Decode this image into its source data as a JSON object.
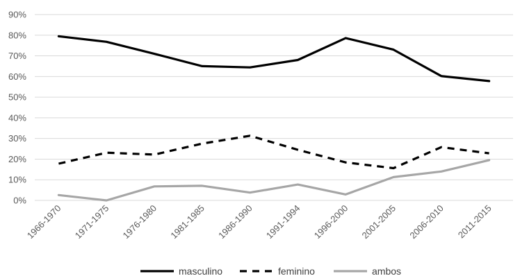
{
  "chart_data": {
    "type": "line",
    "title": "",
    "xlabel": "",
    "ylabel": "",
    "categories": [
      "1966-1970",
      "1971-1975",
      "1976-1980",
      "1981-1985",
      "1986-1990",
      "1991-1994",
      "1996-2000",
      "2001-2005",
      "2006-2010",
      "2011-2015"
    ],
    "ylim": [
      0,
      90
    ],
    "yticks": [
      0,
      10,
      20,
      30,
      40,
      50,
      60,
      70,
      80,
      90
    ],
    "ytick_labels": [
      "0%",
      "10%",
      "20%",
      "30%",
      "40%",
      "50%",
      "60%",
      "70%",
      "80%",
      "90%"
    ],
    "grid": true,
    "legend_position": "bottom",
    "series": [
      {
        "name": "masculino",
        "values": [
          79.5,
          76.8,
          71.0,
          65.0,
          64.4,
          68.0,
          78.6,
          73.0,
          60.2,
          57.8
        ],
        "color": "#000000",
        "style": "solid"
      },
      {
        "name": "feminino",
        "values": [
          17.8,
          23.1,
          22.2,
          27.5,
          31.3,
          24.5,
          18.4,
          15.6,
          25.8,
          22.8
        ],
        "color": "#000000",
        "style": "dashed"
      },
      {
        "name": "ambos",
        "values": [
          2.6,
          0.0,
          6.8,
          7.1,
          3.8,
          7.7,
          2.9,
          11.3,
          14.0,
          19.5
        ],
        "color": "#a6a6a6",
        "style": "solid"
      }
    ]
  }
}
